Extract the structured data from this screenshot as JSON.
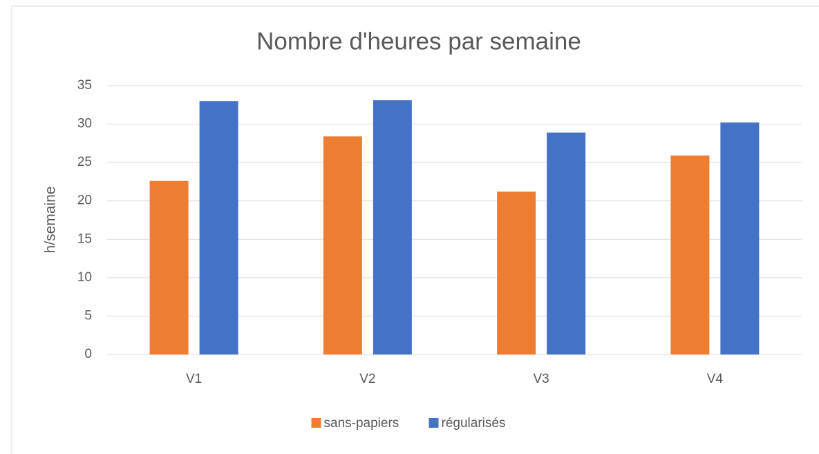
{
  "chart_data": {
    "type": "bar",
    "title": "Nombre d'heures par semaine",
    "y_label": "h/semaine",
    "categories": [
      "V1",
      "V2",
      "V3",
      "V4"
    ],
    "series": [
      {
        "name": "sans-papiers",
        "color": "#ed7d31",
        "values": [
          22.6,
          28.4,
          21.2,
          25.9
        ]
      },
      {
        "name": "régularisés",
        "color": "#4472c4",
        "values": [
          33.0,
          33.1,
          28.9,
          30.2
        ]
      }
    ],
    "ylim": [
      0,
      35
    ],
    "yticks": [
      0,
      5,
      10,
      15,
      20,
      25,
      30,
      35
    ],
    "grid": true,
    "legend": "bottom"
  }
}
